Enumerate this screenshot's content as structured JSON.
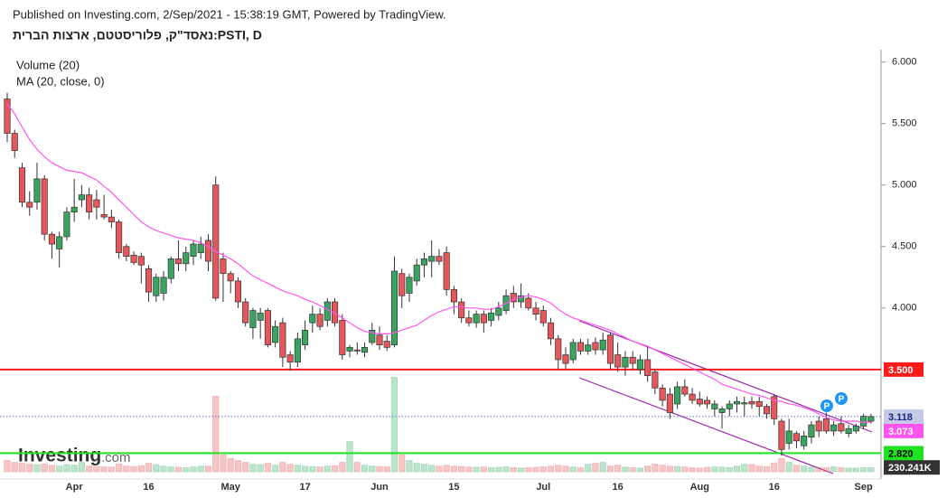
{
  "header": {
    "published": "Published on Investing.com, 2/Sep/2021 - 15:38:19 GMT, Powered by TradingView.",
    "title": "נאסד\"ק, פלוריסטטם, ארצות הברית:PSTI, D"
  },
  "logo": {
    "name": "Investing",
    "suffix": ".com"
  },
  "chart_data": {
    "type": "candlestick",
    "categories": [
      null,
      null,
      null,
      null,
      null,
      null,
      null,
      null,
      null,
      "Apr",
      null,
      null,
      null,
      null,
      null,
      null,
      null,
      null,
      null,
      "16",
      null,
      null,
      null,
      null,
      null,
      null,
      null,
      null,
      null,
      null,
      "May",
      null,
      null,
      null,
      null,
      null,
      null,
      null,
      null,
      null,
      "17",
      null,
      null,
      null,
      null,
      null,
      null,
      null,
      null,
      null,
      "Jun",
      null,
      null,
      null,
      null,
      null,
      null,
      null,
      null,
      null,
      "15",
      null,
      null,
      null,
      null,
      null,
      null,
      null,
      null,
      null,
      null,
      null,
      "Jul",
      null,
      null,
      null,
      null,
      null,
      null,
      null,
      null,
      null,
      "16",
      null,
      null,
      null,
      null,
      null,
      null,
      null,
      null,
      null,
      null,
      "Aug",
      null,
      null,
      null,
      null,
      null,
      null,
      null,
      null,
      null,
      "16",
      null,
      null,
      null,
      null,
      null,
      null,
      null,
      null,
      null,
      null,
      null,
      "Sep",
      null
    ],
    "open": [
      5.7,
      5.42,
      5.14,
      4.86,
      4.86,
      5.05,
      4.6,
      4.48,
      4.58,
      4.78,
      4.88,
      4.92,
      4.88,
      4.76,
      4.74,
      4.7,
      4.5,
      4.43,
      4.42,
      4.32,
      4.1,
      4.12,
      4.24,
      4.4,
      4.36,
      4.42,
      4.45,
      4.55,
      5.0,
      4.4,
      4.28,
      4.22,
      4.05,
      3.84,
      3.9,
      3.98,
      3.72,
      3.88,
      3.62,
      3.56,
      3.7,
      3.88,
      3.95,
      3.9,
      4.05,
      3.9,
      3.65,
      3.66,
      3.64,
      3.72,
      3.78,
      3.73,
      3.7,
      4.28,
      4.12,
      4.22,
      4.35,
      4.38,
      4.42,
      4.45,
      4.15,
      4.05,
      3.92,
      3.88,
      3.95,
      3.9,
      3.94,
      3.98,
      4.12,
      4.05,
      4.08,
      4.0,
      3.98,
      3.88,
      3.75,
      3.62,
      3.58,
      3.72,
      3.65,
      3.72,
      3.66,
      3.78,
      3.62,
      3.52,
      3.6,
      3.5,
      3.58,
      3.48,
      3.35,
      3.3,
      3.22,
      3.36,
      3.3,
      3.26,
      3.25,
      3.18,
      3.15,
      3.18,
      3.22,
      3.22,
      3.24,
      3.24,
      3.2,
      3.28,
      3.08,
      2.9,
      2.98,
      2.88,
      2.95,
      3.08,
      3.1,
      3.0,
      3.06,
      2.98,
      3.0,
      3.04,
      3.08
    ],
    "high": [
      5.75,
      5.45,
      5.18,
      4.95,
      5.18,
      5.08,
      4.62,
      4.62,
      4.82,
      5.05,
      5.0,
      4.98,
      4.96,
      4.92,
      4.8,
      4.72,
      4.52,
      4.46,
      4.45,
      4.35,
      4.28,
      4.3,
      4.42,
      4.55,
      4.5,
      4.55,
      4.58,
      4.6,
      5.07,
      4.45,
      4.3,
      4.25,
      4.08,
      4.0,
      4.0,
      4.0,
      3.9,
      3.92,
      3.65,
      3.8,
      3.9,
      4.02,
      4.0,
      4.08,
      4.08,
      3.95,
      3.7,
      3.72,
      3.72,
      3.88,
      3.85,
      3.78,
      4.42,
      4.32,
      4.28,
      4.4,
      4.45,
      4.55,
      4.48,
      4.5,
      4.18,
      4.08,
      3.98,
      3.98,
      3.98,
      4.0,
      4.05,
      4.15,
      4.18,
      4.2,
      4.12,
      4.05,
      4.02,
      3.92,
      3.78,
      3.68,
      3.75,
      3.75,
      3.75,
      3.76,
      3.8,
      3.8,
      3.72,
      3.65,
      3.65,
      3.62,
      3.68,
      3.5,
      3.38,
      3.35,
      3.4,
      3.42,
      3.35,
      3.32,
      3.28,
      3.25,
      3.2,
      3.25,
      3.28,
      3.28,
      3.28,
      3.28,
      3.22,
      3.3,
      3.1,
      3.1,
      3.0,
      3.0,
      3.08,
      3.12,
      3.15,
      3.08,
      3.12,
      3.05,
      3.06,
      3.14,
      3.14
    ],
    "low": [
      5.35,
      5.22,
      4.82,
      4.75,
      4.8,
      4.55,
      4.4,
      4.33,
      4.55,
      4.7,
      4.82,
      4.72,
      4.72,
      4.72,
      4.65,
      4.4,
      4.38,
      4.35,
      4.2,
      4.05,
      4.05,
      4.06,
      4.2,
      4.3,
      4.3,
      4.35,
      4.4,
      4.3,
      4.06,
      4.05,
      4.12,
      4.0,
      3.85,
      3.75,
      3.75,
      3.68,
      3.68,
      3.52,
      3.49,
      3.52,
      3.66,
      3.8,
      3.82,
      3.85,
      3.85,
      3.58,
      3.6,
      3.62,
      3.6,
      3.7,
      3.66,
      3.65,
      3.68,
      4.0,
      4.05,
      4.18,
      4.25,
      4.25,
      4.35,
      4.1,
      3.95,
      3.88,
      3.85,
      3.84,
      3.8,
      3.85,
      3.9,
      3.95,
      4.0,
      4.0,
      3.98,
      3.9,
      3.85,
      3.7,
      3.5,
      3.5,
      3.55,
      3.62,
      3.62,
      3.62,
      3.62,
      3.5,
      3.48,
      3.45,
      3.5,
      3.46,
      3.4,
      3.3,
      3.2,
      3.1,
      3.18,
      3.28,
      3.22,
      3.2,
      3.18,
      3.12,
      3.02,
      3.12,
      3.15,
      3.12,
      3.18,
      3.12,
      3.1,
      3.05,
      2.8,
      2.85,
      2.86,
      2.85,
      2.9,
      2.95,
      2.98,
      2.96,
      2.98,
      2.95,
      2.98,
      3.02,
      3.06
    ],
    "close": [
      5.42,
      5.28,
      4.86,
      4.82,
      5.05,
      4.6,
      4.52,
      4.58,
      4.78,
      4.82,
      4.92,
      4.78,
      4.82,
      4.74,
      4.7,
      4.45,
      4.42,
      4.37,
      4.35,
      4.13,
      4.25,
      4.25,
      4.4,
      4.36,
      4.45,
      4.52,
      4.52,
      4.38,
      4.08,
      4.28,
      4.22,
      4.05,
      3.88,
      3.98,
      3.96,
      3.7,
      3.85,
      3.6,
      3.56,
      3.75,
      3.82,
      3.95,
      3.85,
      4.05,
      3.88,
      3.62,
      3.68,
      3.65,
      3.68,
      3.82,
      3.7,
      3.68,
      4.3,
      4.1,
      4.25,
      4.35,
      4.4,
      4.42,
      4.38,
      4.15,
      4.05,
      3.92,
      3.88,
      3.95,
      3.88,
      3.96,
      4.0,
      4.1,
      4.05,
      4.1,
      4.0,
      3.95,
      3.88,
      3.75,
      3.58,
      3.55,
      3.72,
      3.65,
      3.7,
      3.66,
      3.74,
      3.55,
      3.52,
      3.6,
      3.55,
      3.58,
      3.45,
      3.35,
      3.25,
      3.15,
      3.36,
      3.3,
      3.25,
      3.22,
      3.22,
      3.22,
      3.18,
      3.22,
      3.24,
      3.23,
      3.22,
      3.2,
      3.14,
      3.1,
      2.85,
      3.0,
      2.92,
      2.96,
      3.05,
      3.0,
      3.0,
      3.05,
      3.0,
      3.02,
      3.04,
      3.12,
      3.118
    ],
    "up_color": "#3aa35f",
    "down_color": "#e5575b",
    "wick_color": "#333333",
    "ma": {
      "name": "MA (20, close, 0)",
      "color": "#ff55ee",
      "values": [
        5.66,
        5.58,
        5.47,
        5.37,
        5.29,
        5.23,
        5.18,
        5.15,
        5.12,
        5.11,
        5.1,
        5.07,
        5.04,
        4.99,
        4.94,
        4.88,
        4.82,
        4.76,
        4.7,
        4.66,
        4.63,
        4.61,
        4.59,
        4.57,
        4.56,
        4.55,
        4.53,
        4.5,
        4.46,
        4.43,
        4.4,
        4.36,
        4.31,
        4.26,
        4.23,
        4.2,
        4.17,
        4.14,
        4.12,
        4.1,
        4.07,
        4.05,
        4.02,
        3.99,
        3.96,
        3.92,
        3.88,
        3.84,
        3.81,
        3.8,
        3.79,
        3.79,
        3.8,
        3.82,
        3.84,
        3.86,
        3.9,
        3.94,
        3.97,
        3.99,
        4.01,
        4.01,
        4.0,
        4.0,
        3.99,
        3.99,
        4.01,
        4.04,
        4.07,
        4.09,
        4.1,
        4.09,
        4.07,
        4.04,
        3.99,
        3.95,
        3.92,
        3.9,
        3.88,
        3.86,
        3.84,
        3.82,
        3.79,
        3.76,
        3.73,
        3.71,
        3.69,
        3.66,
        3.63,
        3.6,
        3.57,
        3.54,
        3.51,
        3.48,
        3.45,
        3.42,
        3.38,
        3.36,
        3.34,
        3.32,
        3.3,
        3.29,
        3.27,
        3.25,
        3.24,
        3.22,
        3.21,
        3.19,
        3.17,
        3.14,
        3.11,
        3.09,
        3.08,
        3.08,
        3.08,
        3.07,
        3.073
      ],
      "last_label": {
        "value": 3.073,
        "label": "3.073"
      }
    },
    "volume": {
      "name": "Volume (20)",
      "up_color": "rgba(60,180,110,0.35)",
      "down_color": "rgba(230,90,90,0.35)",
      "vlim": [
        0,
        5500
      ],
      "values": [
        600,
        500,
        450,
        400,
        380,
        420,
        350,
        300,
        380,
        350,
        500,
        300,
        280,
        260,
        250,
        420,
        300,
        280,
        320,
        450,
        380,
        300,
        260,
        240,
        220,
        260,
        300,
        300,
        4000,
        900,
        700,
        600,
        500,
        400,
        380,
        450,
        350,
        500,
        400,
        350,
        300,
        280,
        260,
        300,
        320,
        500,
        1600,
        500,
        350,
        300,
        280,
        260,
        5000,
        900,
        600,
        450,
        400,
        350,
        300,
        350,
        300,
        280,
        250,
        240,
        260,
        220,
        240,
        260,
        220,
        200,
        220,
        240,
        260,
        300,
        350,
        300,
        250,
        220,
        400,
        450,
        500,
        300,
        350,
        250,
        220,
        200,
        300,
        400,
        350,
        300,
        280,
        250,
        220,
        200,
        240,
        260,
        250,
        220,
        300,
        400,
        380,
        300,
        280,
        450,
        700,
        500,
        350,
        300,
        250,
        240,
        220,
        260,
        230,
        200,
        200,
        220,
        230
      ],
      "ma_label": {
        "value": 230.241,
        "label": "230.241K"
      }
    },
    "ylim": [
      2.61,
      6.1
    ],
    "yticks": [
      {
        "value": 6,
        "label": "6.000"
      },
      {
        "value": 5.5,
        "label": "5.500"
      },
      {
        "value": 5,
        "label": "5.000"
      },
      {
        "value": 4.5,
        "label": "4.500"
      },
      {
        "value": 4,
        "label": "4.000"
      }
    ],
    "price_lines": [
      {
        "value": 3.5,
        "label": "3.500",
        "color": "#ff1a1a",
        "text_color": "#ffffff",
        "style": "solid"
      },
      {
        "value": 3.118,
        "label": "3.118",
        "color": "#5c6bc0",
        "label_bg": "#c5cae9",
        "text_color": "#1a237e",
        "style": "dotted"
      },
      {
        "value": 2.82,
        "label": "2.820",
        "color": "#1ee31e",
        "text_color": "#000000",
        "style": "solid"
      }
    ]
  }
}
